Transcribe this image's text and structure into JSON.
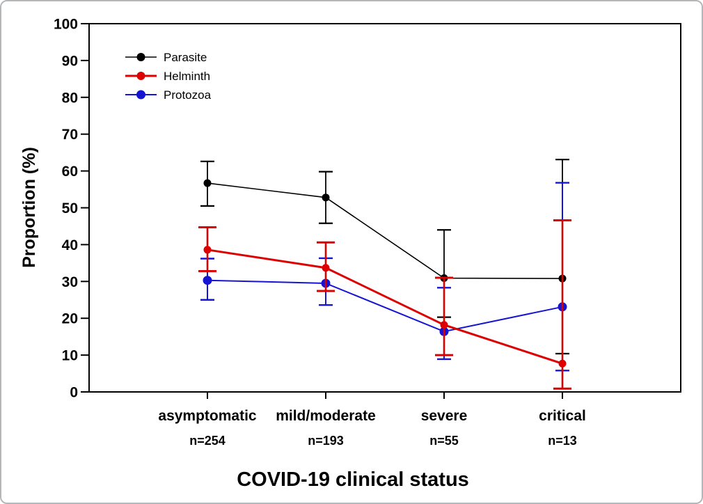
{
  "figure": {
    "background": "#ffffff",
    "outer_border_color": "#b4b7b9",
    "frame_color": "#000000"
  },
  "chart_data": {
    "type": "line",
    "title": "",
    "xlabel": "COVID-19 clinical status",
    "ylabel": "Proportion (%)",
    "ylim": [
      0,
      100
    ],
    "y_ticks": [
      0,
      10,
      20,
      30,
      40,
      50,
      60,
      70,
      80,
      90,
      100
    ],
    "grid": false,
    "legend_position": "top-left",
    "error_bars": "95% CI",
    "categories": [
      "asymptomatic",
      "mild/moderate",
      "severe",
      "critical"
    ],
    "category_counts": [
      "n=254",
      "n=193",
      "n=55",
      "n=13"
    ],
    "series": [
      {
        "name": "Parasite",
        "color": "#000000",
        "values": [
          56.7,
          52.8,
          30.9,
          30.8
        ],
        "ci_low": [
          50.5,
          45.8,
          20.3,
          10.4
        ],
        "ci_high": [
          62.6,
          59.8,
          44.0,
          63.1
        ]
      },
      {
        "name": "Helminth",
        "color": "#dd0000",
        "values": [
          38.6,
          33.7,
          18.2,
          7.7
        ],
        "ci_low": [
          32.8,
          27.4,
          10.0,
          0.9
        ],
        "ci_high": [
          44.7,
          40.6,
          31.0,
          46.6
        ]
      },
      {
        "name": "Protozoa",
        "color": "#1414d2",
        "values": [
          30.3,
          29.5,
          16.4,
          23.1
        ],
        "ci_low": [
          25.0,
          23.6,
          8.9,
          5.8
        ],
        "ci_high": [
          36.2,
          36.3,
          28.3,
          56.8
        ]
      }
    ]
  }
}
